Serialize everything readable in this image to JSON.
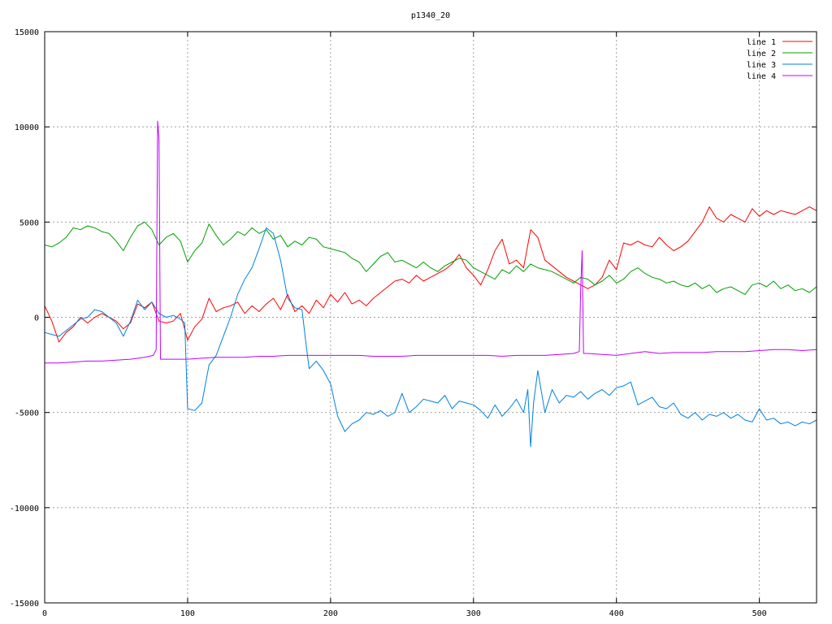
{
  "chart_data": {
    "type": "line",
    "title": "p1340_20",
    "xlabel": "",
    "ylabel": "",
    "xlim": [
      0,
      540
    ],
    "ylim": [
      -15000,
      15000
    ],
    "xticks": [
      0,
      100,
      200,
      300,
      400,
      500
    ],
    "yticks": [
      -15000,
      -10000,
      -5000,
      0,
      5000,
      10000,
      15000
    ],
    "grid": true,
    "legend_position": "top-right",
    "series": [
      {
        "name": "line 1",
        "color": "#ff0000",
        "x": [
          0,
          5,
          10,
          15,
          20,
          25,
          30,
          35,
          40,
          45,
          50,
          55,
          60,
          65,
          70,
          75,
          80,
          85,
          90,
          95,
          100,
          105,
          110,
          115,
          120,
          125,
          130,
          135,
          140,
          145,
          150,
          155,
          160,
          165,
          170,
          175,
          180,
          185,
          190,
          195,
          200,
          205,
          210,
          215,
          220,
          225,
          230,
          235,
          240,
          245,
          250,
          255,
          260,
          265,
          270,
          275,
          280,
          285,
          290,
          295,
          300,
          305,
          310,
          315,
          320,
          325,
          330,
          335,
          340,
          345,
          350,
          355,
          360,
          365,
          370,
          375,
          380,
          385,
          390,
          395,
          400,
          405,
          410,
          415,
          420,
          425,
          430,
          435,
          440,
          445,
          450,
          455,
          460,
          465,
          470,
          475,
          480,
          485,
          490,
          495,
          500,
          505,
          510,
          515,
          520,
          525,
          530,
          535,
          540
        ],
        "values": [
          600,
          -200,
          -1300,
          -800,
          -500,
          0,
          -300,
          0,
          200,
          0,
          -200,
          -600,
          -300,
          700,
          500,
          800,
          -200,
          -300,
          -200,
          200,
          -1200,
          -500,
          -100,
          1000,
          300,
          500,
          600,
          800,
          200,
          600,
          300,
          700,
          1000,
          400,
          1200,
          300,
          600,
          200,
          900,
          500,
          1200,
          800,
          1300,
          700,
          900,
          600,
          1000,
          1300,
          1600,
          1900,
          2000,
          1800,
          2200,
          1900,
          2100,
          2300,
          2500,
          2800,
          3300,
          2600,
          2200,
          1700,
          2500,
          3500,
          4100,
          2800,
          3000,
          2600,
          4600,
          4200,
          3000,
          2700,
          2400,
          2100,
          1900,
          1700,
          1500,
          1700,
          2100,
          3000,
          2500,
          3900,
          3800,
          4000,
          3800,
          3700,
          4200,
          3800,
          3500,
          3700,
          4000,
          4500,
          5000,
          5800,
          5200,
          5000,
          5400,
          5200,
          5000,
          5700,
          5300,
          5600,
          5400,
          5600,
          5500,
          5400,
          5600,
          5800,
          5600
        ]
      },
      {
        "name": "line 2",
        "color": "#00a000",
        "x": [
          0,
          5,
          10,
          15,
          20,
          25,
          30,
          35,
          40,
          45,
          50,
          55,
          60,
          65,
          70,
          75,
          80,
          85,
          90,
          95,
          100,
          105,
          110,
          115,
          120,
          125,
          130,
          135,
          140,
          145,
          150,
          155,
          160,
          165,
          170,
          175,
          180,
          185,
          190,
          195,
          200,
          205,
          210,
          215,
          220,
          225,
          230,
          235,
          240,
          245,
          250,
          255,
          260,
          265,
          270,
          275,
          280,
          285,
          290,
          295,
          300,
          305,
          310,
          315,
          320,
          325,
          330,
          335,
          340,
          345,
          350,
          355,
          360,
          365,
          370,
          375,
          380,
          385,
          390,
          395,
          400,
          405,
          410,
          415,
          420,
          425,
          430,
          435,
          440,
          445,
          450,
          455,
          460,
          465,
          470,
          475,
          480,
          485,
          490,
          495,
          500,
          505,
          510,
          515,
          520,
          525,
          530,
          535,
          540
        ],
        "values": [
          3800,
          3700,
          3900,
          4200,
          4700,
          4600,
          4800,
          4700,
          4500,
          4400,
          4000,
          3500,
          4200,
          4800,
          5000,
          4600,
          3800,
          4200,
          4400,
          4000,
          2900,
          3500,
          3900,
          4900,
          4300,
          3800,
          4100,
          4500,
          4300,
          4700,
          4400,
          4600,
          4100,
          4300,
          3700,
          4000,
          3800,
          4200,
          4100,
          3700,
          3600,
          3500,
          3400,
          3100,
          2900,
          2400,
          2800,
          3200,
          3400,
          2900,
          3000,
          2800,
          2600,
          2900,
          2600,
          2400,
          2700,
          2900,
          3100,
          3000,
          2600,
          2400,
          2200,
          2000,
          2500,
          2300,
          2700,
          2400,
          2800,
          2600,
          2500,
          2400,
          2200,
          2000,
          1800,
          2100,
          2000,
          1700,
          1900,
          2200,
          1800,
          2000,
          2400,
          2600,
          2300,
          2100,
          2000,
          1800,
          1900,
          1700,
          1600,
          1800,
          1500,
          1700,
          1300,
          1500,
          1600,
          1400,
          1200,
          1700,
          1800,
          1600,
          1900,
          1500,
          1700,
          1400,
          1500,
          1300,
          1600
        ]
      },
      {
        "name": "line 3",
        "color": "#0080e0",
        "x": [
          0,
          5,
          10,
          15,
          20,
          25,
          30,
          35,
          40,
          45,
          50,
          55,
          60,
          65,
          70,
          75,
          80,
          85,
          90,
          95,
          98,
          100,
          105,
          110,
          115,
          120,
          125,
          130,
          135,
          140,
          145,
          150,
          155,
          160,
          165,
          170,
          175,
          180,
          183,
          185,
          190,
          195,
          200,
          205,
          210,
          215,
          220,
          225,
          230,
          235,
          240,
          245,
          250,
          255,
          260,
          265,
          270,
          275,
          280,
          285,
          290,
          295,
          300,
          305,
          310,
          315,
          320,
          325,
          330,
          335,
          338,
          340,
          342,
          345,
          350,
          355,
          360,
          365,
          370,
          375,
          380,
          385,
          390,
          395,
          400,
          405,
          410,
          415,
          420,
          425,
          430,
          435,
          440,
          445,
          450,
          455,
          460,
          465,
          470,
          475,
          480,
          485,
          490,
          495,
          500,
          505,
          510,
          515,
          520,
          525,
          530,
          535,
          540
        ],
        "values": [
          -800,
          -900,
          -1000,
          -700,
          -400,
          -100,
          0,
          400,
          300,
          0,
          -300,
          -1000,
          -200,
          900,
          400,
          800,
          200,
          0,
          100,
          -100,
          -300,
          -4800,
          -4900,
          -4500,
          -2500,
          -2000,
          -1000,
          0,
          1200,
          2000,
          2600,
          3600,
          4700,
          4400,
          3000,
          1000,
          500,
          400,
          -1500,
          -2700,
          -2300,
          -2800,
          -3500,
          -5200,
          -6000,
          -5600,
          -5400,
          -5000,
          -5100,
          -4900,
          -5200,
          -5000,
          -4000,
          -5000,
          -4700,
          -4300,
          -4400,
          -4500,
          -4100,
          -4800,
          -4400,
          -4500,
          -4600,
          -4900,
          -5300,
          -4600,
          -5200,
          -4800,
          -4300,
          -5000,
          -3800,
          -6800,
          -4500,
          -2800,
          -5000,
          -3800,
          -4500,
          -4100,
          -4200,
          -3900,
          -4300,
          -4000,
          -3800,
          -4100,
          -3700,
          -3600,
          -3400,
          -4600,
          -4400,
          -4200,
          -4700,
          -4800,
          -4500,
          -5100,
          -5300,
          -5000,
          -5400,
          -5100,
          -5200,
          -5000,
          -5300,
          -5100,
          -5400,
          -5500,
          -4800,
          -5400,
          -5300,
          -5600,
          -5500,
          -5700,
          -5500,
          -5600,
          -5400
        ]
      },
      {
        "name": "line 4",
        "color": "#c000ff",
        "x": [
          0,
          10,
          20,
          30,
          40,
          50,
          60,
          70,
          76,
          78,
          79,
          80,
          81,
          82,
          83,
          90,
          100,
          110,
          120,
          130,
          140,
          150,
          160,
          170,
          180,
          190,
          200,
          210,
          220,
          230,
          240,
          250,
          260,
          270,
          280,
          290,
          300,
          310,
          320,
          330,
          340,
          350,
          360,
          370,
          374,
          375,
          376,
          377,
          378,
          380,
          390,
          400,
          410,
          420,
          430,
          440,
          450,
          460,
          470,
          480,
          490,
          500,
          510,
          520,
          530,
          540
        ],
        "values": [
          -2400,
          -2400,
          -2350,
          -2300,
          -2300,
          -2250,
          -2200,
          -2100,
          -2000,
          -1700,
          10300,
          9400,
          -2200,
          -2200,
          -2200,
          -2200,
          -2200,
          -2150,
          -2100,
          -2100,
          -2100,
          -2050,
          -2050,
          -2000,
          -2000,
          -2000,
          -2000,
          -2000,
          -2000,
          -2050,
          -2050,
          -2050,
          -2000,
          -2000,
          -2000,
          -2000,
          -2000,
          -2000,
          -2050,
          -2000,
          -2000,
          -2000,
          -1950,
          -1900,
          -1800,
          1500,
          3500,
          -1900,
          -1900,
          -1900,
          -1950,
          -2000,
          -1900,
          -1800,
          -1900,
          -1850,
          -1850,
          -1850,
          -1800,
          -1800,
          -1800,
          -1750,
          -1700,
          -1700,
          -1750,
          -1700
        ]
      }
    ]
  }
}
